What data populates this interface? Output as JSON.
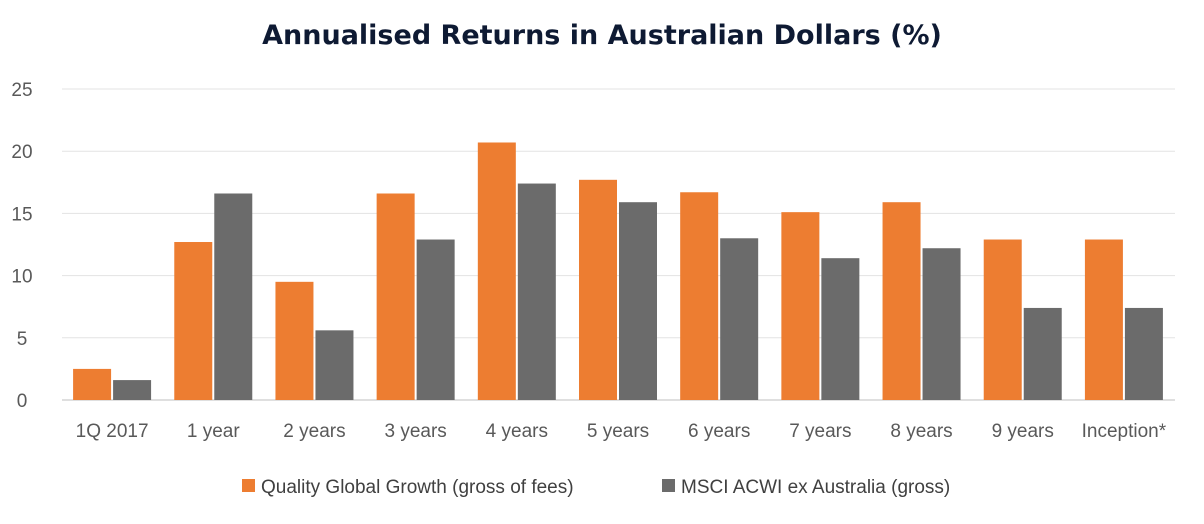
{
  "chart_data": {
    "type": "bar",
    "title": "Annualised Returns in Australian Dollars (%)",
    "xlabel": "",
    "ylabel": "",
    "ylim": [
      0,
      25
    ],
    "yticks": [
      "0",
      "5",
      "10",
      "15",
      "20",
      "25"
    ],
    "grid": true,
    "legend_position": "bottom",
    "categories": [
      "1Q 2017",
      "1 year",
      "2 years",
      "3 years",
      "4 years",
      "5 years",
      "6 years",
      "7 years",
      "8 years",
      "9 years",
      "Inception*"
    ],
    "series": [
      {
        "name": "Quality Global Growth (gross of fees)",
        "color": "#ed7d31",
        "values": [
          2.5,
          12.7,
          9.5,
          16.6,
          20.7,
          17.7,
          16.7,
          15.1,
          15.9,
          12.9,
          12.9
        ]
      },
      {
        "name": "MSCI ACWI ex Australia (gross)",
        "color": "#6b6b6b",
        "values": [
          1.6,
          16.6,
          5.6,
          12.9,
          17.4,
          15.9,
          13.0,
          11.4,
          12.2,
          7.4,
          7.4
        ]
      }
    ]
  }
}
